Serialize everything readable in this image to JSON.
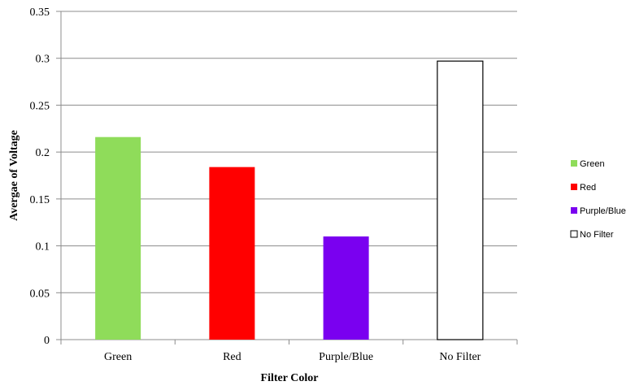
{
  "chart_data": {
    "type": "bar",
    "categories": [
      "Green",
      "Red",
      "Purple/Blue",
      "No Filter"
    ],
    "values": [
      0.216,
      0.184,
      0.11,
      0.297
    ],
    "colors": [
      "#8fdc5a",
      "#ff0000",
      "#7a00f0",
      "#ffffff"
    ],
    "xlabel": "Filter Color",
    "ylabel": "Avergae of Voltage",
    "ylim": [
      0,
      0.35
    ],
    "yticks": [
      "0",
      "0.05",
      "0.1",
      "0.15",
      "0.2",
      "0.25",
      "0.3",
      "0.35"
    ],
    "grid": true,
    "legend": {
      "placement": "right",
      "entries": [
        "Green",
        "Red",
        "Purple/Blue",
        "No Filter"
      ]
    }
  }
}
